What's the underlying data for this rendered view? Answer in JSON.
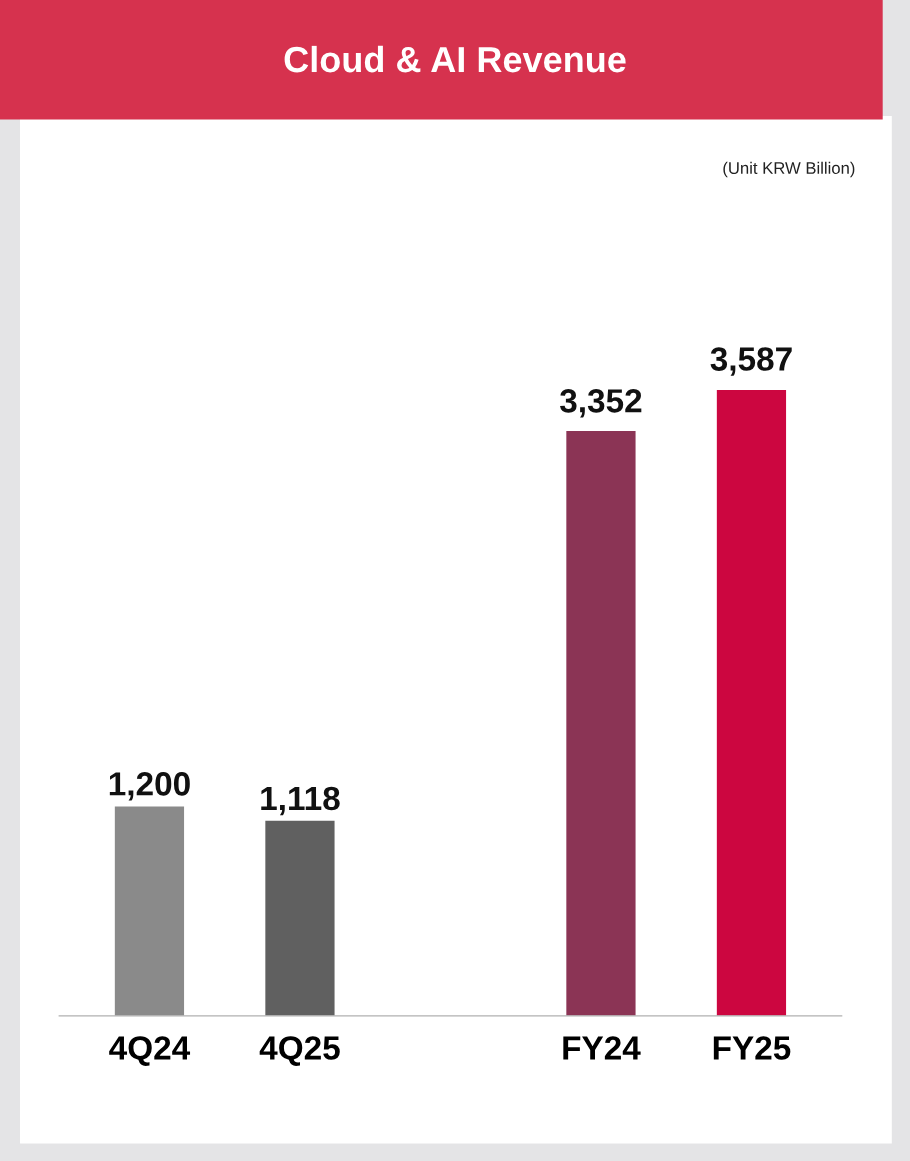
{
  "chart_data": {
    "type": "bar",
    "title": "Cloud & AI Revenue",
    "annotations": [
      "(Unit KRW Billion)"
    ],
    "categories": [
      "4Q24",
      "4Q25",
      null,
      "FY24",
      "FY25"
    ],
    "values": [
      1200,
      1118,
      null,
      3352,
      3587
    ],
    "value_labels": [
      "1,200",
      "1,118",
      null,
      "3,352",
      "3,587"
    ],
    "colors": [
      "#8a8a8a",
      "#606060",
      null,
      "#8b3455",
      "#cc0640"
    ],
    "grid": false,
    "legend": false
  }
}
